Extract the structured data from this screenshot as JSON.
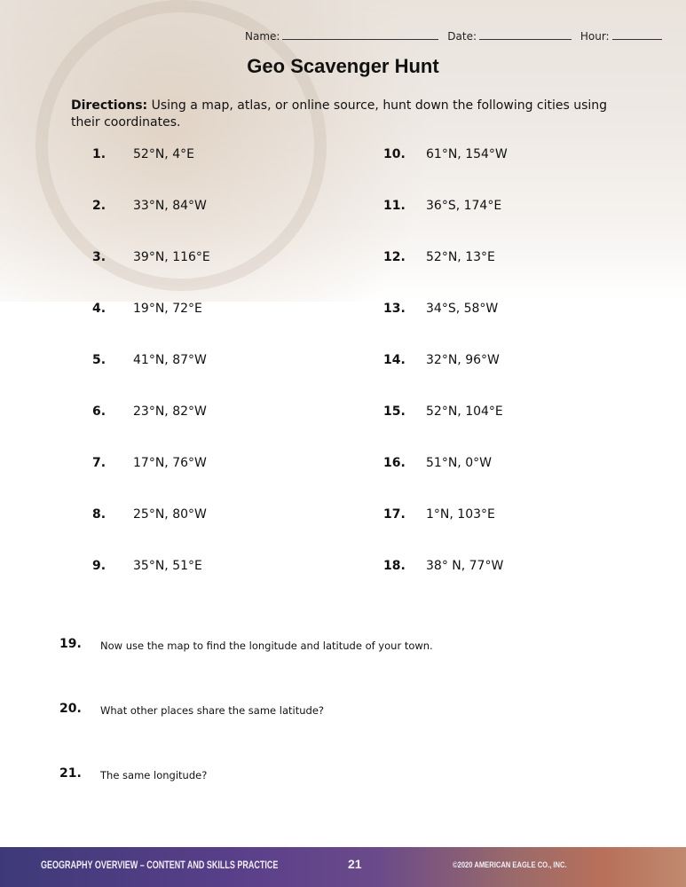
{
  "header": {
    "name_label": "Name:",
    "date_label": "Date:",
    "hour_label": "Hour:"
  },
  "title": "Geo Scavenger Hunt",
  "directions": {
    "label": "Directions:",
    "text": " Using a map, atlas, or online source, hunt down the following cities using their coordinates."
  },
  "left_items": [
    {
      "num": "1.",
      "coord": "52°N, 4°E"
    },
    {
      "num": "2.",
      "coord": "33°N, 84°W"
    },
    {
      "num": "3.",
      "coord": "39°N, 116°E"
    },
    {
      "num": "4.",
      "coord": "19°N, 72°E"
    },
    {
      "num": "5.",
      "coord": "41°N, 87°W"
    },
    {
      "num": "6.",
      "coord": "23°N, 82°W"
    },
    {
      "num": "7.",
      "coord": "17°N, 76°W"
    },
    {
      "num": "8.",
      "coord": "25°N, 80°W"
    },
    {
      "num": "9.",
      "coord": "35°N, 51°E"
    }
  ],
  "right_items": [
    {
      "num": "10.",
      "coord": "61°N, 154°W"
    },
    {
      "num": "11.",
      "coord": "36°S, 174°E"
    },
    {
      "num": "12.",
      "coord": "52°N, 13°E"
    },
    {
      "num": "13.",
      "coord": "34°S, 58°W"
    },
    {
      "num": "14.",
      "coord": "32°N, 96°W"
    },
    {
      "num": "15.",
      "coord": "52°N, 104°E"
    },
    {
      "num": "16.",
      "coord": "51°N, 0°W"
    },
    {
      "num": "17.",
      "coord": "1°N, 103°E"
    },
    {
      "num": "18.",
      "coord": "38° N, 77°W"
    }
  ],
  "questions": [
    {
      "num": "19.",
      "text": "Now use the map to find the longitude and latitude of your town."
    },
    {
      "num": "20.",
      "text": "What other places share the same latitude?"
    },
    {
      "num": "21.",
      "text": "The same longitude?"
    }
  ],
  "footer": {
    "title": "GEOGRAPHY OVERVIEW – CONTENT AND SKILLS PRACTICE",
    "page": "21",
    "copyright": "©2020 AMERICAN EAGLE CO., INC."
  }
}
